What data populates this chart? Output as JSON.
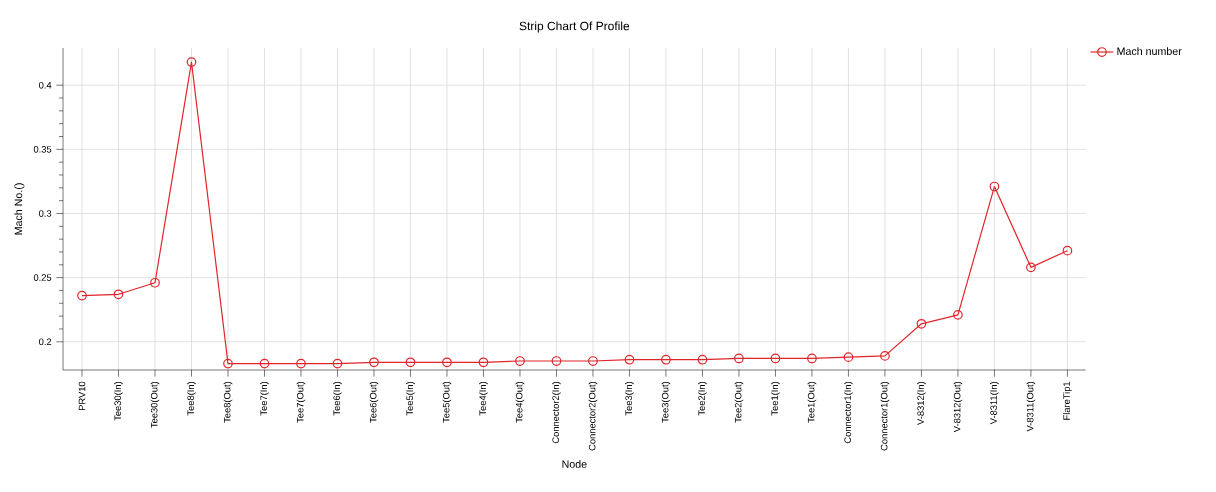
{
  "chart_data": {
    "type": "line",
    "title": "Strip Chart Of Profile",
    "xlabel": "Node",
    "ylabel": "Mach No.()",
    "categories": [
      "PRV10",
      "Tee30(In)",
      "Tee30(Out)",
      "Tee8(In)",
      "Tee8(Out)",
      "Tee7(In)",
      "Tee7(Out)",
      "Tee6(In)",
      "Tee6(Out)",
      "Tee5(In)",
      "Tee5(Out)",
      "Tee4(In)",
      "Tee4(Out)",
      "Connector2(In)",
      "Connector2(Out)",
      "Tee3(In)",
      "Tee3(Out)",
      "Tee2(In)",
      "Tee2(Out)",
      "Tee1(In)",
      "Tee1(Out)",
      "Connector1(In)",
      "Connector1(Out)",
      "V-8312(In)",
      "V-8312(Out)",
      "V-8311(In)",
      "V-8311(Out)",
      "FlareTip1"
    ],
    "series": [
      {
        "name": "Mach number",
        "color": "#e0262b",
        "values": [
          0.236,
          0.237,
          0.246,
          0.418,
          0.183,
          0.183,
          0.183,
          0.183,
          0.184,
          0.184,
          0.184,
          0.184,
          0.185,
          0.185,
          0.185,
          0.186,
          0.186,
          0.186,
          0.187,
          0.187,
          0.187,
          0.188,
          0.189,
          0.214,
          0.221,
          0.321,
          0.258,
          0.271
        ]
      }
    ],
    "ylim": [
      0.178,
      0.429
    ],
    "yticks": [
      0.2,
      0.25,
      0.3,
      0.35,
      0.4
    ],
    "grid": true,
    "legend": "top right",
    "marker": "circle",
    "line_style": "solid"
  }
}
